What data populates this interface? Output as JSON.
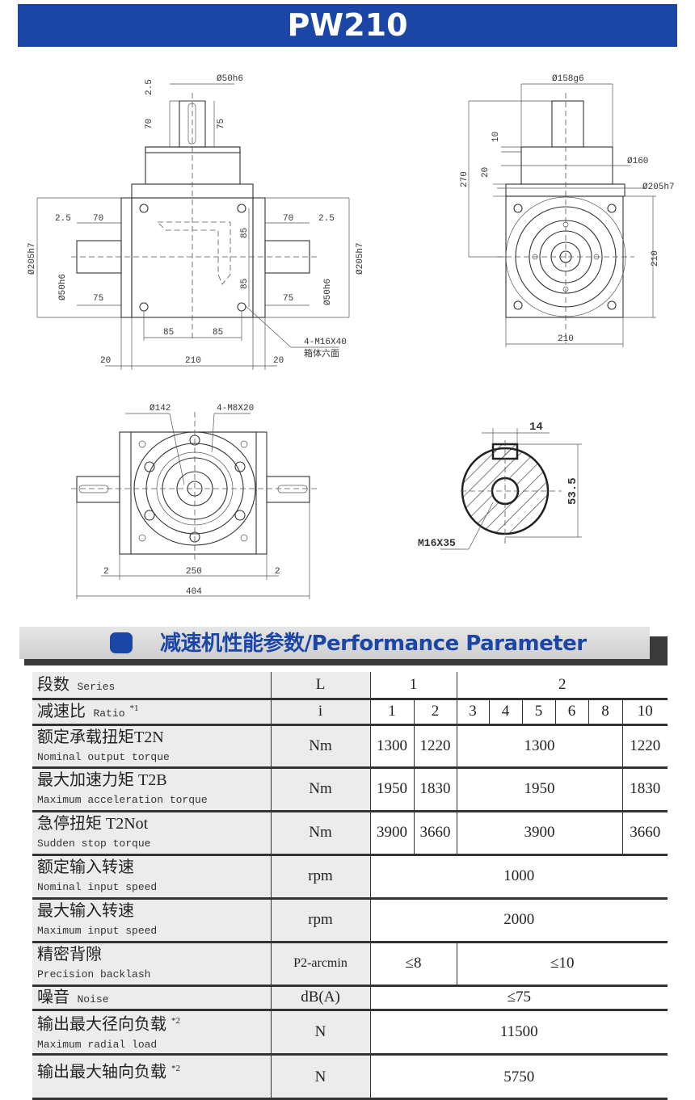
{
  "title": "PW210",
  "drawings": {
    "front_view": {
      "top_shaft_dia": "Ø50h6",
      "top_gap": "2.5",
      "top_len_70": "70",
      "top_len_75": "75",
      "left_gap": "2.5",
      "left_70": "70",
      "left_75": "75",
      "left_flange_dia": "Ø205h7",
      "left_shaft_dia": "Ø50h6",
      "right_70": "70",
      "right_gap": "2.5",
      "right_75": "75",
      "right_flange_dia": "Ø205h7",
      "right_shaft_dia": "Ø50h6",
      "hole_v_85a": "85",
      "hole_v_85b": "85",
      "hole_h_85a": "85",
      "hole_h_85b": "85",
      "width_210": "210",
      "side_20_left": "20",
      "side_20_right": "20",
      "thread_note": "4-M16X40",
      "thread_note_cn": "箱体六面"
    },
    "side_view": {
      "pilot_dia": "Ø158g6",
      "height_270": "270",
      "dim_10": "10",
      "dim_20": "20",
      "dia_160": "Ø160",
      "flange_dia": "Ø205h7",
      "height_210": "210",
      "width_210": "210"
    },
    "top_view": {
      "pcd": "Ø142",
      "thread": "4-M8X20",
      "gap_left": "2",
      "width_250": "250",
      "gap_right": "2",
      "overall_404": "404"
    },
    "shaft_section": {
      "key_width": "14",
      "key_height": "53.5",
      "center_thread": "M16X35"
    }
  },
  "section": {
    "heading": "减速机性能参数/Performance Parameter",
    "accent": "#1c46a6"
  },
  "table": {
    "series": {
      "cn": "段数",
      "en": "Series",
      "unit": "L",
      "values": [
        "1",
        "2"
      ]
    },
    "ratio": {
      "cn": "减速比",
      "en": "Ratio",
      "note": "*1",
      "unit": "i",
      "values": [
        "1",
        "2",
        "3",
        "4",
        "5",
        "6",
        "8",
        "10"
      ]
    },
    "nominal_torque": {
      "cn": "额定承载扭矩T2N",
      "en": "Nominal output torque",
      "unit": "Nm",
      "values": [
        "1300",
        "1220",
        "1300",
        "1220"
      ]
    },
    "accel_torque": {
      "cn": "最大加速力矩 T2B",
      "en": "Maximum acceleration torque",
      "unit": "Nm",
      "values": [
        "1950",
        "1830",
        "1950",
        "1830"
      ]
    },
    "stop_torque": {
      "cn": "急停扭矩 T2Not",
      "en": "Sudden stop torque",
      "unit": "Nm",
      "values": [
        "3900",
        "3660",
        "3900",
        "3660"
      ]
    },
    "nominal_speed": {
      "cn": "额定输入转速",
      "en": "Nominal input speed",
      "unit": "rpm",
      "value": "1000"
    },
    "max_speed": {
      "cn": "最大输入转速",
      "en": "Maximum input speed",
      "unit": "rpm",
      "value": "2000"
    },
    "backlash": {
      "cn": "精密背隙",
      "en": "Precision backlash",
      "unit": "P2-arcmin",
      "values": [
        "≤8",
        "≤10"
      ]
    },
    "noise": {
      "cn": "噪音",
      "en": "Noise",
      "unit": "dB(A)",
      "value": "≤75"
    },
    "radial_load": {
      "cn": "输出最大径向负载",
      "en": "Maximum radial load",
      "note": "*2",
      "unit": "N",
      "value": "11500"
    },
    "axial_load": {
      "cn": "输出最大轴向负载",
      "note": "*2",
      "unit": "N",
      "value": "5750"
    }
  }
}
